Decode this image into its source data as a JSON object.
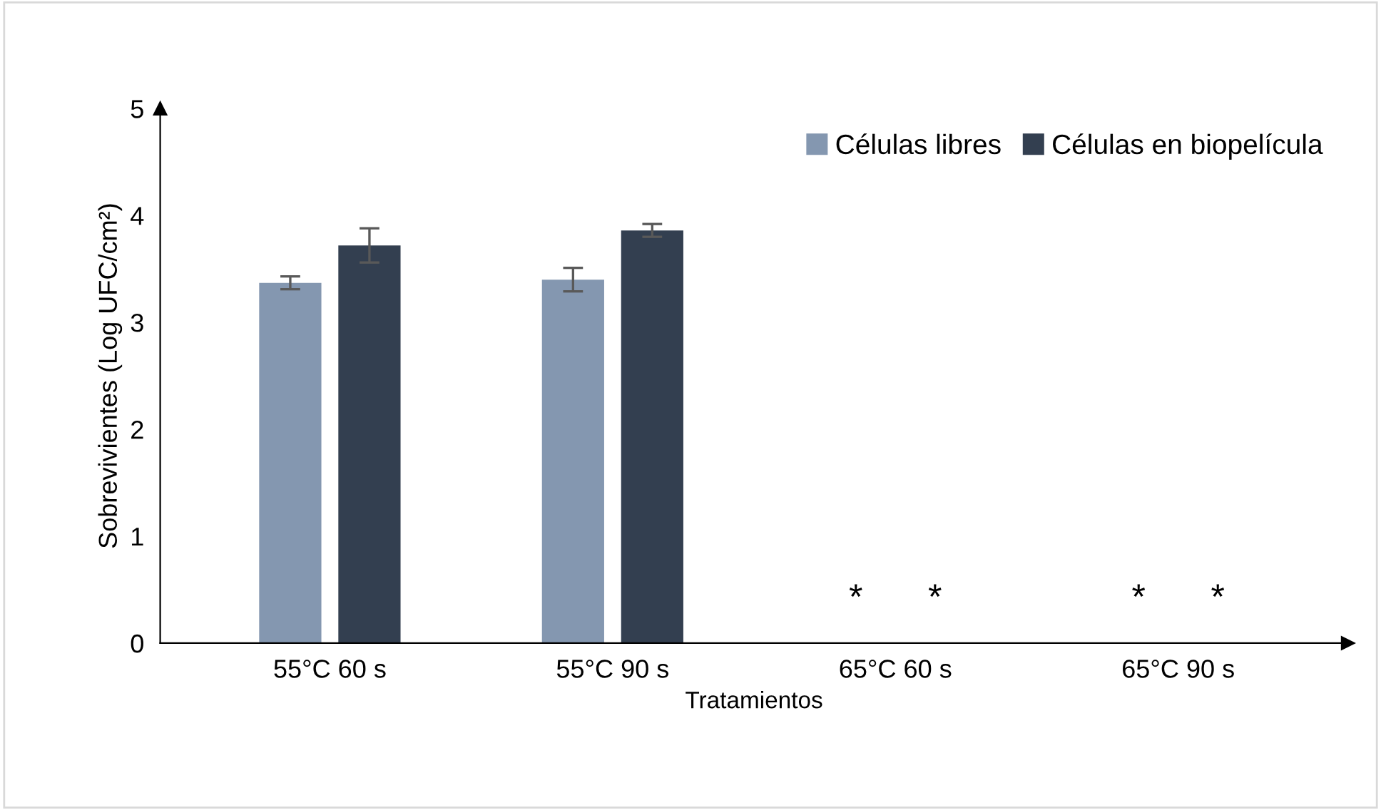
{
  "chart_data": {
    "type": "bar",
    "xlabel": "Tratamientos",
    "ylabel": "Sobrevivientes (Log UFC/cm²)",
    "categories": [
      "55°C 60 s",
      "55°C 90 s",
      "65°C 60 s",
      "65°C 90 s"
    ],
    "series": [
      {
        "name": "Células libres",
        "color": "#8497b0",
        "values": [
          3.37,
          3.4,
          null,
          null
        ],
        "errors": [
          0.06,
          0.11,
          null,
          null
        ]
      },
      {
        "name": "Células en biopelícula",
        "color": "#333f50",
        "values": [
          3.72,
          3.86,
          null,
          null
        ],
        "errors": [
          0.16,
          0.06,
          null,
          null
        ]
      }
    ],
    "annotations": [
      "*",
      "*",
      "*",
      "*"
    ],
    "ylim": [
      0,
      5
    ],
    "yticks": [
      0,
      1,
      2,
      3,
      4,
      5
    ],
    "grid": false,
    "legend": "top right"
  }
}
